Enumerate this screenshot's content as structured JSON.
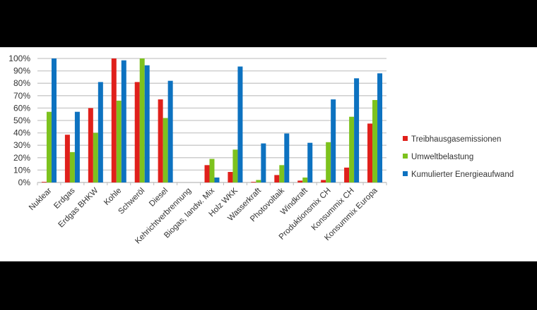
{
  "chart_data": {
    "type": "bar",
    "categories": [
      "Nuklear",
      "Erdgas",
      "Erdgas BHKW",
      "Kohle",
      "Schweröl",
      "Diesel",
      "Kehrichtverbrennung",
      "Biogas, landw. Mix",
      "Holz WKK",
      "Wasserkraft",
      "Photovoltaik",
      "Windkraft",
      "Produktionsmix CH",
      "Konsummix CH",
      "Konsummix Europa"
    ],
    "series": [
      {
        "name": "Treibhausgasemissionen",
        "color": "#e0201b",
        "values": [
          0.5,
          38.5,
          60,
          100,
          81,
          67,
          0,
          14,
          8.5,
          0.5,
          6,
          1.5,
          2,
          12,
          47.5
        ]
      },
      {
        "name": "Umweltbelastung",
        "color": "#7dc21e",
        "values": [
          57,
          24.5,
          40,
          66,
          100,
          52,
          0,
          19,
          26.5,
          2,
          14,
          4,
          32.5,
          53,
          66.5
        ]
      },
      {
        "name": "Kumulierter Energieaufwand",
        "color": "#0d72c0",
        "values": [
          100,
          57,
          81,
          98.5,
          94.5,
          82,
          0,
          4,
          93.5,
          31.5,
          39.5,
          32,
          67,
          84,
          88
        ]
      }
    ],
    "ytick_labels": [
      "0%",
      "10%",
      "20%",
      "30%",
      "40%",
      "50%",
      "60%",
      "70%",
      "80%",
      "90%",
      "100%"
    ],
    "ylim": [
      0,
      100
    ],
    "grid": true,
    "legend": "right"
  }
}
